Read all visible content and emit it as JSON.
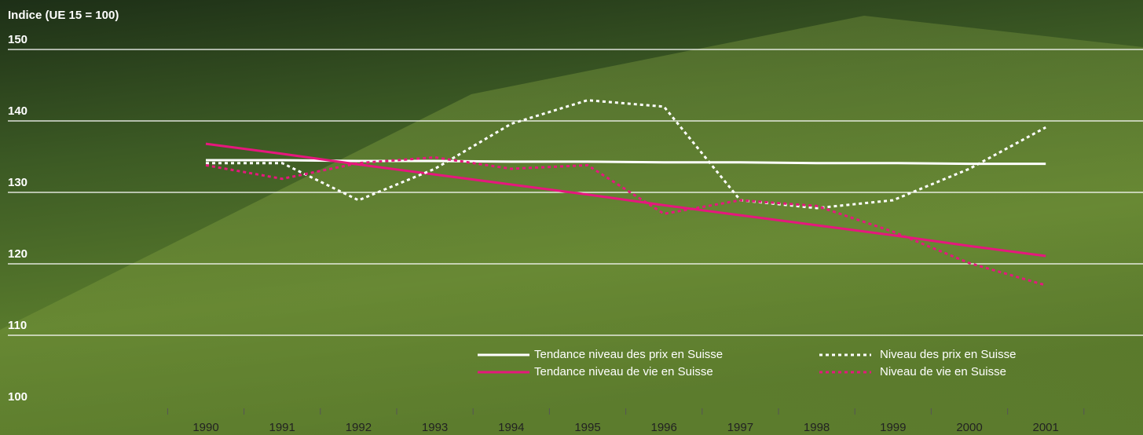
{
  "chart_data": {
    "type": "line",
    "y_label": "Indice (UE 15 = 100)",
    "categories": [
      "1990",
      "1991",
      "1992",
      "1993",
      "1994",
      "1995",
      "1996",
      "1997",
      "1998",
      "1999",
      "2000",
      "2001"
    ],
    "series": [
      {
        "name": "Tendance niveau des prix en Suisse",
        "color": "#ffffff",
        "dash": false,
        "values": [
          134.5,
          134.5,
          134.4,
          134.4,
          134.3,
          134.3,
          134.2,
          134.2,
          134.1,
          134.1,
          134.0,
          134.0
        ]
      },
      {
        "name": "Tendance niveau de vie en Suisse",
        "color": "#e6177d",
        "dash": false,
        "values": [
          136.8,
          135.4,
          133.9,
          132.5,
          131.1,
          129.7,
          128.2,
          126.8,
          125.4,
          124.0,
          122.5,
          121.1
        ]
      },
      {
        "name": "Niveau des prix en Suisse",
        "color": "#ffffff",
        "dash": true,
        "values": [
          134.1,
          134.1,
          128.9,
          133.3,
          139.6,
          142.9,
          142.0,
          128.9,
          127.8,
          128.9,
          133.3,
          139.1
        ]
      },
      {
        "name": "Niveau de vie en Suisse",
        "color": "#e6177d",
        "dash": true,
        "values": [
          133.8,
          131.9,
          134.1,
          134.9,
          133.3,
          133.8,
          127.0,
          128.9,
          128.1,
          124.5,
          120.1,
          117.0
        ]
      }
    ],
    "ylim": [
      100,
      150
    ],
    "yticks": [
      100,
      110,
      120,
      130,
      140,
      150
    ],
    "grid": true
  }
}
